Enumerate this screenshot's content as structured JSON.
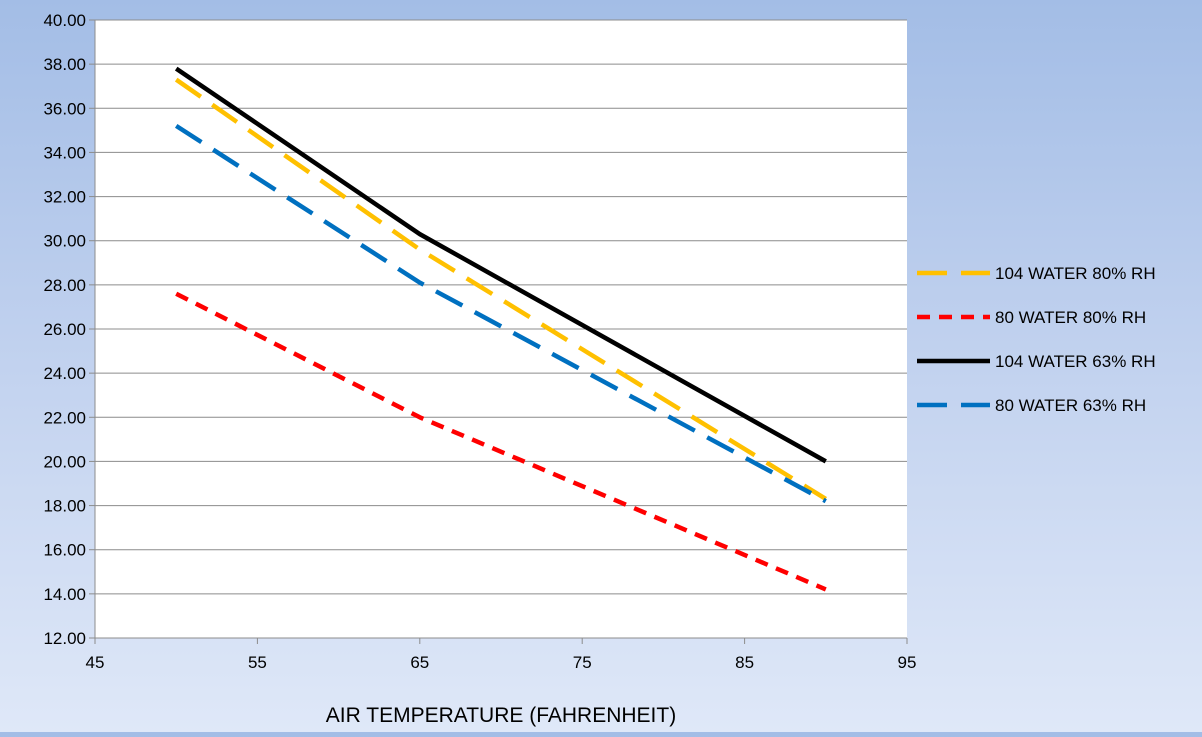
{
  "chart_data": {
    "type": "line",
    "title": "",
    "xlabel": "AIR TEMPERATURE (FAHRENHEIT)",
    "ylabel": "",
    "xlim": [
      45,
      95
    ],
    "ylim": [
      12,
      40
    ],
    "x_ticks": [
      "45",
      "55",
      "65",
      "75",
      "85",
      "95"
    ],
    "y_ticks": [
      "12.00",
      "14.00",
      "16.00",
      "18.00",
      "20.00",
      "22.00",
      "24.00",
      "26.00",
      "28.00",
      "30.00",
      "32.00",
      "34.00",
      "36.00",
      "38.00",
      "40.00"
    ],
    "grid": "horizontal",
    "legend_position": "right",
    "series": [
      {
        "name": "104 WATER 80% RH",
        "color": "#ffc000",
        "dash": "long-dash",
        "x": [
          50,
          65,
          90
        ],
        "y": [
          37.3,
          29.6,
          18.3
        ]
      },
      {
        "name": "80 WATER 80% RH",
        "color": "#ff0000",
        "dash": "short-dash",
        "x": [
          50,
          65,
          90
        ],
        "y": [
          27.6,
          22.0,
          14.2
        ]
      },
      {
        "name": "104 WATER 63% RH",
        "color": "#000000",
        "dash": "solid",
        "x": [
          50,
          65,
          90
        ],
        "y": [
          37.8,
          30.3,
          20.0
        ]
      },
      {
        "name": "80 WATER 63% RH",
        "color": "#0070c0",
        "dash": "long-dash",
        "x": [
          50,
          65,
          90
        ],
        "y": [
          35.2,
          28.1,
          18.2
        ]
      }
    ]
  }
}
